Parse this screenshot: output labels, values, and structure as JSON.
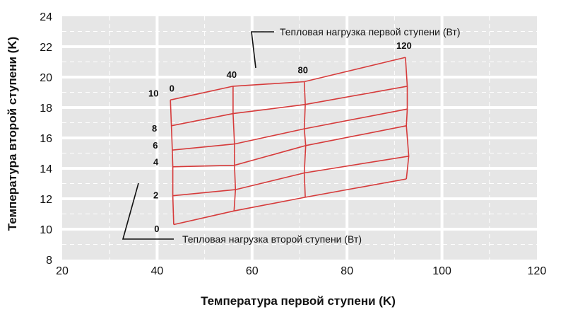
{
  "chart_data": {
    "type": "line",
    "title": "",
    "xlabel": "Температура первой ступени (K)",
    "ylabel": "Температура второй ступени (K)",
    "xlim": [
      20,
      120
    ],
    "ylim": [
      8,
      24
    ],
    "xticks": [
      20,
      40,
      60,
      80,
      100,
      120
    ],
    "yticks": [
      8,
      10,
      12,
      14,
      16,
      18,
      20,
      22,
      24
    ],
    "grid": true,
    "first_stage_loads": [
      "0",
      "40",
      "80",
      "120"
    ],
    "second_stage_loads": [
      "0",
      "2",
      "4",
      "6",
      "8",
      "10"
    ],
    "grid_points": [
      [
        [
          43.5,
          10.3
        ],
        [
          43.3,
          12.2
        ],
        [
          43.3,
          14.1
        ],
        [
          43.2,
          15.2
        ],
        [
          43.0,
          16.8
        ],
        [
          42.8,
          18.5
        ]
      ],
      [
        [
          56.2,
          11.2
        ],
        [
          56.5,
          12.6
        ],
        [
          56.3,
          14.2
        ],
        [
          56.3,
          15.6
        ],
        [
          56.0,
          17.6
        ],
        [
          56.0,
          19.4
        ]
      ],
      [
        [
          71.2,
          12.1
        ],
        [
          71.0,
          13.7
        ],
        [
          71.3,
          15.5
        ],
        [
          71.0,
          16.6
        ],
        [
          71.2,
          18.2
        ],
        [
          71.0,
          19.7
        ]
      ],
      [
        [
          92.5,
          13.3
        ],
        [
          93.0,
          14.8
        ],
        [
          92.5,
          16.8
        ],
        [
          92.7,
          17.9
        ],
        [
          92.7,
          19.4
        ],
        [
          92.3,
          21.3
        ]
      ]
    ],
    "annotations": {
      "first_stage": "Тепловая нагрузка первой ступени (Вт)",
      "second_stage": "Тепловая нагрузка второй ступени (Вт)"
    },
    "colors": {
      "line": "#d63b3b",
      "plot_background": "#e6e6e6",
      "grid_major": "#ffffff",
      "grid_minor": "#ffffff",
      "text": "#111111"
    }
  }
}
